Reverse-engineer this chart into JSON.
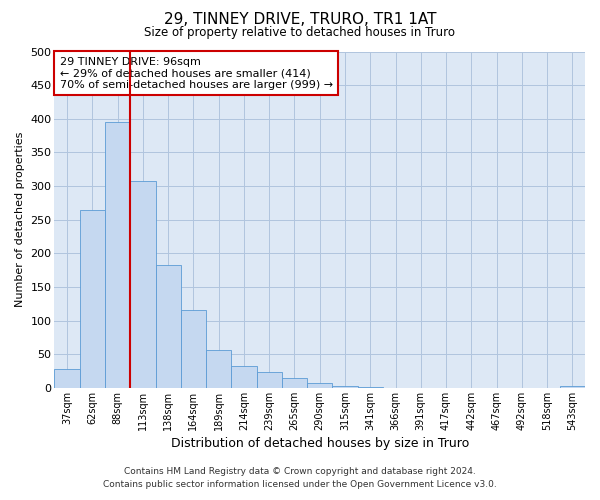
{
  "title": "29, TINNEY DRIVE, TRURO, TR1 1AT",
  "subtitle": "Size of property relative to detached houses in Truro",
  "xlabel": "Distribution of detached houses by size in Truro",
  "ylabel": "Number of detached properties",
  "footer_line1": "Contains HM Land Registry data © Crown copyright and database right 2024.",
  "footer_line2": "Contains public sector information licensed under the Open Government Licence v3.0.",
  "categories": [
    "37sqm",
    "62sqm",
    "88sqm",
    "113sqm",
    "138sqm",
    "164sqm",
    "189sqm",
    "214sqm",
    "239sqm",
    "265sqm",
    "290sqm",
    "315sqm",
    "341sqm",
    "366sqm",
    "391sqm",
    "417sqm",
    "442sqm",
    "467sqm",
    "492sqm",
    "518sqm",
    "543sqm"
  ],
  "values": [
    28,
    265,
    395,
    308,
    182,
    116,
    57,
    32,
    24,
    14,
    7,
    3,
    1,
    0,
    0,
    0,
    0,
    0,
    0,
    0,
    3
  ],
  "bar_color": "#c5d8f0",
  "bar_edge_color": "#5b9bd5",
  "bar_edge_width": 0.6,
  "grid_color": "#b0c4de",
  "background_color": "#ffffff",
  "plot_bg_color": "#dde8f5",
  "annotation_text": "29 TINNEY DRIVE: 96sqm\n← 29% of detached houses are smaller (414)\n70% of semi-detached houses are larger (999) →",
  "annotation_box_facecolor": "#ffffff",
  "annotation_box_edgecolor": "#cc0000",
  "red_line_color": "#cc0000",
  "ylim": [
    0,
    500
  ],
  "yticks": [
    0,
    50,
    100,
    150,
    200,
    250,
    300,
    350,
    400,
    450,
    500
  ]
}
